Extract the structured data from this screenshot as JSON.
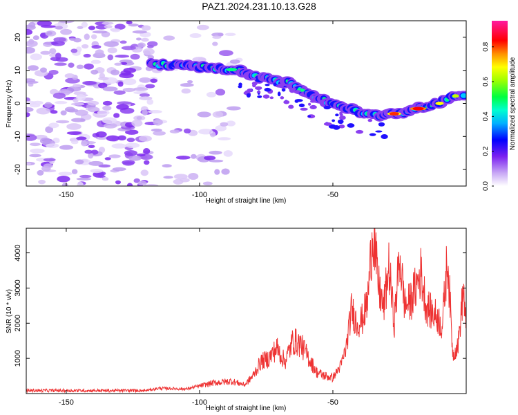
{
  "title": "PAZ1.2024.231.10.13.G28",
  "chart_data": [
    {
      "type": "heatmap",
      "xlabel": "Height of straight line (km)",
      "ylabel": "Frequency (Hz)",
      "xlim": [
        -165,
        0
      ],
      "ylim": [
        -25,
        25
      ],
      "xticks": [
        -150,
        -100,
        -50
      ],
      "yticks": [
        -20,
        -10,
        0,
        10,
        20
      ],
      "colorbar": {
        "label": "Normalized spectral amplitude",
        "range": [
          0,
          0.95
        ],
        "ticks": [
          "0.0",
          "0.2",
          "0.4",
          "0.6",
          "0.8"
        ],
        "colormap": "rainbow (violet-blue-cyan-green-yellow-orange-red-magenta)"
      },
      "ridge": {
        "description": "dominant frequency track",
        "x": [
          -118,
          -110,
          -100,
          -92,
          -85,
          -78,
          -72,
          -66,
          -60,
          -54,
          -48,
          -42,
          -38,
          -34,
          -30,
          -26,
          -20,
          -15,
          -10,
          -6,
          -2,
          0
        ],
        "y": [
          12,
          11.5,
          11,
          10.5,
          10,
          8,
          7,
          6,
          3,
          1,
          -1,
          -2,
          -3,
          -3.5,
          -3.5,
          -3,
          -2,
          -1,
          0,
          1.5,
          3,
          2
        ]
      },
      "noise_region": {
        "x": [
          -165,
          -85
        ]
      }
    },
    {
      "type": "line",
      "xlabel": "Height of straight line (km)",
      "ylabel": "SNR (10 * v/v)",
      "xlim": [
        -165,
        0
      ],
      "ylim": [
        0,
        4700
      ],
      "xticks": [
        -150,
        -100,
        -50
      ],
      "yticks": [
        1000,
        2000,
        3000,
        4000
      ],
      "color": "#ee3333",
      "x": [
        -165,
        -150,
        -135,
        -120,
        -115,
        -105,
        -95,
        -88,
        -83,
        -80,
        -77,
        -74,
        -71,
        -68,
        -65,
        -62,
        -59,
        -56,
        -53,
        -50,
        -47,
        -45,
        -43,
        -41,
        -39,
        -37,
        -35,
        -33,
        -31,
        -29,
        -27,
        -25,
        -23,
        -21,
        -19,
        -17,
        -15,
        -13,
        -11,
        -9,
        -7,
        -5,
        -3,
        -1,
        0
      ],
      "values": [
        60,
        70,
        80,
        90,
        150,
        130,
        300,
        350,
        250,
        500,
        900,
        1000,
        1300,
        900,
        1500,
        1400,
        1000,
        600,
        500,
        450,
        800,
        1300,
        2400,
        2000,
        2100,
        2600,
        4700,
        3100,
        2400,
        3600,
        2000,
        3900,
        2500,
        2600,
        3000,
        3450,
        2500,
        2300,
        2200,
        1900,
        3900,
        1100,
        1400,
        3000,
        1700
      ]
    }
  ]
}
